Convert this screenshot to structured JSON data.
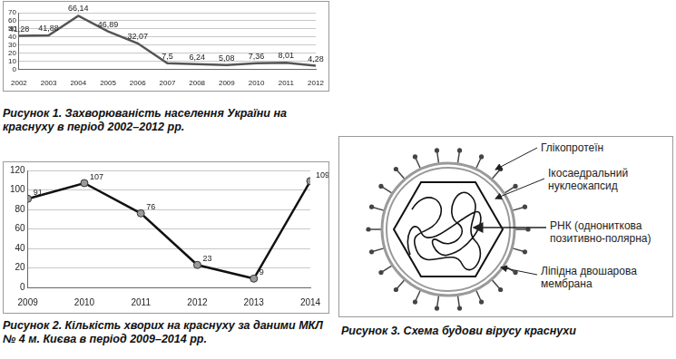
{
  "chart_data": [
    {
      "type": "line",
      "title": "Рисунок 1. Захворюваність населення України на краснуху в період 2002–2012 рр.",
      "categories": [
        "2002",
        "2003",
        "2004",
        "2005",
        "2006",
        "2007",
        "2008",
        "2009",
        "2010",
        "2011",
        "2012"
      ],
      "values": [
        41.28,
        41.88,
        66.14,
        46.89,
        32.07,
        7.5,
        6.24,
        5.08,
        7.36,
        8.01,
        4.28
      ],
      "value_labels": [
        "41,28",
        "41,88",
        "66,14",
        "46,89",
        "32,07",
        "7,5",
        "6,24",
        "5,08",
        "7,36",
        "8,01",
        "4,28"
      ],
      "color": "#555555",
      "ylim": [
        0,
        70
      ],
      "yticks": [
        0,
        10,
        20,
        30,
        40,
        50,
        60,
        70
      ],
      "grid": true,
      "data_labels": true,
      "marker": "none"
    },
    {
      "type": "line",
      "title": "Рисунок 2. Кількість хворих на краснуху за даними МКЛ № 4 м. Києва в період 2009–2014 рр.",
      "categories": [
        "2009",
        "2010",
        "2011",
        "2012",
        "2013",
        "2014"
      ],
      "values": [
        91,
        107,
        76,
        23,
        9,
        109
      ],
      "color": "#111111",
      "ylim": [
        0,
        120
      ],
      "yticks": [
        0,
        20,
        40,
        60,
        80,
        100,
        120
      ],
      "grid": true,
      "data_labels": true,
      "marker": "circle"
    }
  ],
  "diagram": {
    "title": "Рисунок 3. Схема будови вірусу краснухи",
    "labels": [
      {
        "lines": [
          "Глікопротеїн"
        ]
      },
      {
        "lines": [
          "Ікосаедральний",
          "нуклеокапсид"
        ]
      },
      {
        "lines": [
          "РНК (однониткова",
          "позитивно-полярна)"
        ]
      },
      {
        "lines": [
          "Ліпідна двошарова",
          "мембрана"
        ]
      }
    ]
  }
}
